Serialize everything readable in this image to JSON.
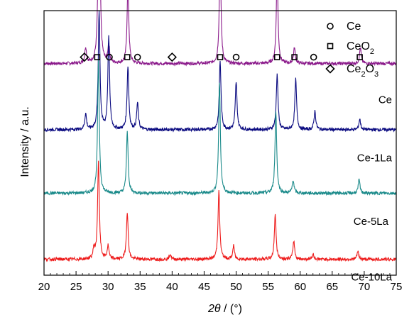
{
  "chart_data": {
    "type": "line",
    "xlabel_italic": "2θ",
    "xlabel_unit": " / (°)",
    "ylabel": "Intensity / a.u.",
    "xlim": [
      20,
      75
    ],
    "x_ticks": [
      20,
      25,
      30,
      35,
      40,
      45,
      50,
      55,
      60,
      65,
      70,
      75
    ],
    "legend": [
      {
        "marker": "circle",
        "label": "Ce"
      },
      {
        "marker": "square",
        "label": "CeO",
        "sub": "2"
      },
      {
        "marker": "diamond",
        "label": "Ce",
        "sub": "2",
        "label2": "O",
        "sub2": "3"
      }
    ],
    "series": [
      {
        "name": "Ce",
        "color": "#8b1a8b",
        "offset": 0.8,
        "peaks": [
          [
            26.5,
            0.06
          ],
          [
            28.6,
            0.82
          ],
          [
            30.1,
            0.07
          ],
          [
            33.1,
            0.3
          ],
          [
            47.5,
            0.41
          ],
          [
            56.4,
            0.34
          ],
          [
            59.1,
            0.06
          ],
          [
            69.4,
            0.06
          ]
        ],
        "markers": [
          {
            "shape": "diamond",
            "x": 26.3
          },
          {
            "shape": "square",
            "x": 28.3
          },
          {
            "shape": "circle",
            "x": 30.2
          },
          {
            "shape": "square",
            "x": 33.0
          },
          {
            "shape": "circle",
            "x": 34.6
          },
          {
            "shape": "diamond",
            "x": 40.0
          },
          {
            "shape": "square",
            "x": 47.5
          },
          {
            "shape": "circle",
            "x": 50.0
          },
          {
            "shape": "square",
            "x": 56.4
          },
          {
            "shape": "square",
            "x": 59.1
          },
          {
            "shape": "circle",
            "x": 62.1
          },
          {
            "shape": "square",
            "x": 69.3
          }
        ]
      },
      {
        "name": "Ce-1La",
        "color": "#0a0a80",
        "offset": 0.55,
        "peaks": [
          [
            26.5,
            0.06
          ],
          [
            28.6,
            0.45
          ],
          [
            30.1,
            0.35
          ],
          [
            33.1,
            0.24
          ],
          [
            34.6,
            0.1
          ],
          [
            47.5,
            0.26
          ],
          [
            50.0,
            0.18
          ],
          [
            56.4,
            0.21
          ],
          [
            59.3,
            0.19
          ],
          [
            62.3,
            0.07
          ],
          [
            69.3,
            0.04
          ]
        ],
        "markers": []
      },
      {
        "name": "Ce-5La",
        "color": "#1a8a8a",
        "offset": 0.31,
        "peaks": [
          [
            28.5,
            0.5
          ],
          [
            33.0,
            0.23
          ],
          [
            47.4,
            0.42
          ],
          [
            56.2,
            0.31
          ],
          [
            58.9,
            0.05
          ],
          [
            69.2,
            0.05
          ]
        ],
        "markers": []
      },
      {
        "name": "Ce-10La",
        "color": "#ee1c1c",
        "offset": 0.06,
        "peaks": [
          [
            27.8,
            0.04
          ],
          [
            28.5,
            0.37
          ],
          [
            30.0,
            0.05
          ],
          [
            33.0,
            0.18
          ],
          [
            39.7,
            0.02
          ],
          [
            47.3,
            0.26
          ],
          [
            49.6,
            0.05
          ],
          [
            56.1,
            0.17
          ],
          [
            59.0,
            0.07
          ],
          [
            62.0,
            0.02
          ],
          [
            69.0,
            0.03
          ]
        ],
        "markers": []
      }
    ]
  }
}
